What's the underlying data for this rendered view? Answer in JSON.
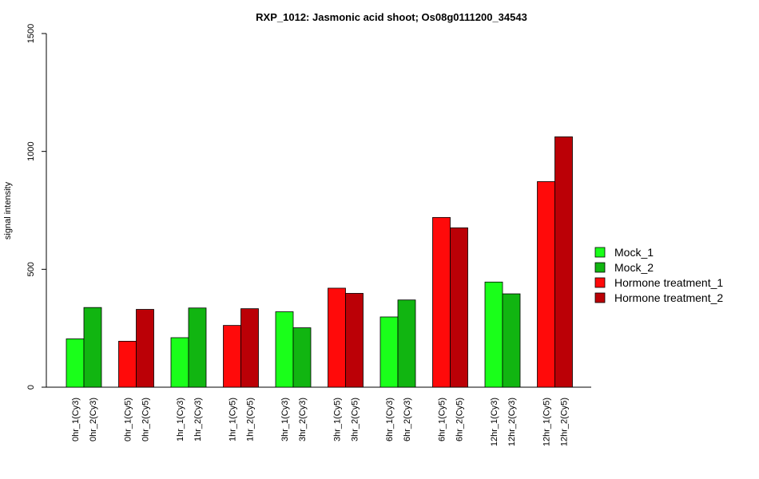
{
  "chart_data": {
    "type": "bar",
    "title": "RXP_1012: Jasmonic acid shoot; Os08g0111200_34543",
    "xlabel": "",
    "ylabel": "signal intensity",
    "ylim": [
      0,
      1500
    ],
    "yticks": [
      0,
      500,
      1000,
      1500
    ],
    "grid": false,
    "legend_position": "right",
    "legend": [
      {
        "name": "Mock_1",
        "color": "#1aff1a"
      },
      {
        "name": "Mock_2",
        "color": "#11b511"
      },
      {
        "name": "Hormone treatment_1",
        "color": "#ff0a0a"
      },
      {
        "name": "Hormone treatment_2",
        "color": "#bb0006"
      }
    ],
    "groups": [
      {
        "bars": [
          {
            "label": "0hr_1(Cy3)",
            "value": 205,
            "color": "#1aff1a"
          },
          {
            "label": "0hr_2(Cy3)",
            "value": 338,
            "color": "#11b511"
          }
        ]
      },
      {
        "bars": [
          {
            "label": "0hr_1(Cy5)",
            "value": 195,
            "color": "#ff0a0a"
          },
          {
            "label": "0hr_2(Cy5)",
            "value": 330,
            "color": "#bb0006"
          }
        ]
      },
      {
        "bars": [
          {
            "label": "1hr_1(Cy3)",
            "value": 210,
            "color": "#1aff1a"
          },
          {
            "label": "1hr_2(Cy3)",
            "value": 336,
            "color": "#11b511"
          }
        ]
      },
      {
        "bars": [
          {
            "label": "1hr_1(Cy5)",
            "value": 262,
            "color": "#ff0a0a"
          },
          {
            "label": "1hr_2(Cy5)",
            "value": 333,
            "color": "#bb0006"
          }
        ]
      },
      {
        "bars": [
          {
            "label": "3hr_1(Cy3)",
            "value": 320,
            "color": "#1aff1a"
          },
          {
            "label": "3hr_2(Cy3)",
            "value": 252,
            "color": "#11b511"
          }
        ]
      },
      {
        "bars": [
          {
            "label": "3hr_1(Cy5)",
            "value": 420,
            "color": "#ff0a0a"
          },
          {
            "label": "3hr_2(Cy5)",
            "value": 398,
            "color": "#bb0006"
          }
        ]
      },
      {
        "bars": [
          {
            "label": "6hr_1(Cy3)",
            "value": 298,
            "color": "#1aff1a"
          },
          {
            "label": "6hr_2(Cy3)",
            "value": 370,
            "color": "#11b511"
          }
        ]
      },
      {
        "bars": [
          {
            "label": "6hr_1(Cy5)",
            "value": 720,
            "color": "#ff0a0a"
          },
          {
            "label": "6hr_2(Cy5)",
            "value": 676,
            "color": "#bb0006"
          }
        ]
      },
      {
        "bars": [
          {
            "label": "12hr_1(Cy3)",
            "value": 446,
            "color": "#1aff1a"
          },
          {
            "label": "12hr_2(Cy3)",
            "value": 396,
            "color": "#11b511"
          }
        ]
      },
      {
        "bars": [
          {
            "label": "12hr_1(Cy5)",
            "value": 872,
            "color": "#ff0a0a"
          },
          {
            "label": "12hr_2(Cy5)",
            "value": 1062,
            "color": "#bb0006"
          }
        ]
      }
    ]
  }
}
